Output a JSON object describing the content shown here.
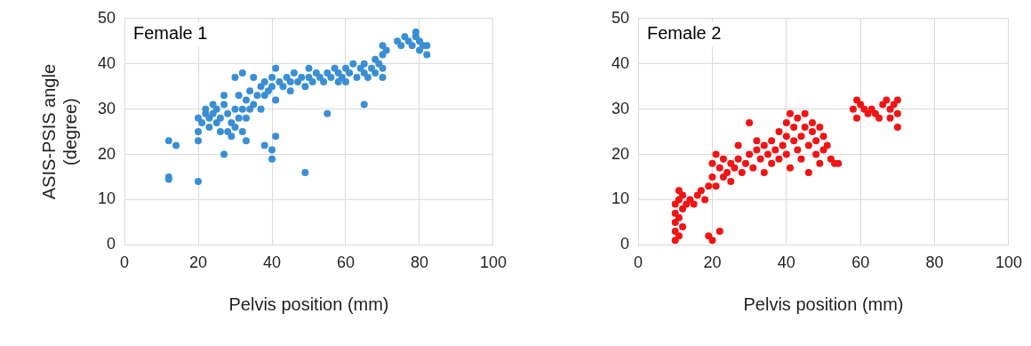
{
  "chart_data": [
    {
      "type": "scatter",
      "title": "Female 1",
      "ylabel": [
        "ASIS-PSIS angle",
        "(degree)"
      ],
      "xlabel": "Pelvis position (mm)",
      "color": "#3a8fd4",
      "marker": "circle",
      "grid": true,
      "xlim": [
        0,
        100
      ],
      "xticks": [
        0,
        20,
        40,
        60,
        80,
        100
      ],
      "ylim": [
        0,
        50
      ],
      "yticks": [
        0,
        10,
        20,
        30,
        40,
        50
      ],
      "x": [
        12,
        12,
        12,
        14,
        20,
        20,
        27,
        33,
        38,
        40,
        40,
        41,
        49,
        55,
        65,
        20,
        20,
        21,
        22,
        22,
        23,
        24,
        25,
        25,
        26,
        27,
        28,
        28,
        29,
        29,
        30,
        30,
        30,
        31,
        31,
        32,
        32,
        32,
        33,
        33,
        34,
        34,
        35,
        35,
        36,
        37,
        37,
        38,
        38,
        39,
        40,
        40,
        41,
        41,
        42,
        43,
        44,
        45,
        45,
        46,
        47,
        48,
        49,
        50,
        50,
        51,
        52,
        53,
        54,
        55,
        56,
        57,
        58,
        58,
        59,
        60,
        60,
        61,
        62,
        63,
        64,
        65,
        65,
        66,
        67,
        68,
        68,
        69,
        70,
        70,
        70,
        70,
        71,
        74,
        75,
        76,
        77,
        78,
        79,
        79,
        80,
        80,
        81,
        82,
        82,
        24,
        26,
        23,
        27
      ],
      "values": [
        15,
        14.5,
        23,
        22,
        14,
        23,
        20,
        23,
        22,
        21,
        19,
        24,
        16,
        29,
        31,
        25,
        28,
        27,
        29,
        30,
        28,
        29,
        30,
        27,
        28,
        31,
        29,
        25,
        27,
        24,
        30,
        26,
        37,
        33,
        28,
        30,
        25,
        38,
        32,
        28,
        30,
        34,
        37,
        31,
        33,
        35,
        30,
        33,
        36,
        34,
        37,
        35,
        39,
        32,
        36,
        35,
        37,
        36,
        34,
        38,
        36,
        37,
        35,
        37,
        39,
        36,
        38,
        37,
        36,
        38,
        37,
        39,
        38,
        36,
        37,
        39,
        36,
        38,
        40,
        37,
        39,
        38,
        40,
        37,
        39,
        38,
        41,
        40,
        44,
        42,
        39,
        37,
        43,
        45,
        44,
        46,
        45,
        44,
        46,
        47,
        45,
        43,
        44,
        42,
        44,
        31,
        25,
        26,
        33
      ]
    },
    {
      "type": "scatter",
      "title": "Female 2",
      "xlabel": "Pelvis position (mm)",
      "color": "#f01414",
      "marker": "circle",
      "grid": true,
      "xlim": [
        0,
        100
      ],
      "xticks": [
        0,
        20,
        40,
        60,
        80,
        100
      ],
      "ylim": [
        0,
        50
      ],
      "yticks": [
        0,
        10,
        20,
        30,
        40,
        50
      ],
      "x": [
        10,
        10,
        10,
        10,
        10,
        11,
        11,
        11,
        11,
        12,
        12,
        12,
        13,
        14,
        15,
        16,
        17,
        18,
        19,
        19,
        20,
        20,
        20,
        21,
        21,
        22,
        22,
        23,
        23,
        24,
        25,
        25,
        26,
        27,
        27,
        28,
        29,
        30,
        30,
        31,
        32,
        32,
        33,
        34,
        34,
        35,
        36,
        36,
        37,
        38,
        38,
        39,
        40,
        40,
        40,
        41,
        41,
        42,
        42,
        43,
        43,
        44,
        44,
        45,
        45,
        46,
        46,
        47,
        47,
        48,
        48,
        49,
        49,
        50,
        50,
        51,
        52,
        53,
        54,
        58,
        59,
        59,
        60,
        61,
        62,
        63,
        64,
        65,
        66,
        67,
        68,
        68,
        69,
        70,
        70,
        70
      ],
      "values": [
        1,
        3,
        5,
        7,
        9,
        2,
        6,
        10,
        12,
        4,
        8,
        11,
        9,
        10,
        9,
        11,
        12,
        10,
        13,
        2,
        1,
        15,
        18,
        20,
        13,
        17,
        3,
        19,
        15,
        16,
        18,
        14,
        17,
        19,
        22,
        16,
        18,
        20,
        27,
        17,
        21,
        23,
        19,
        22,
        16,
        20,
        23,
        18,
        21,
        25,
        19,
        22,
        27,
        24,
        20,
        29,
        17,
        23,
        26,
        21,
        28,
        24,
        19,
        26,
        29,
        22,
        16,
        25,
        27,
        23,
        20,
        26,
        18,
        24,
        21,
        22,
        19,
        18,
        18,
        30,
        32,
        28,
        31,
        30,
        29,
        30,
        29,
        28,
        31,
        32,
        30,
        28,
        31,
        29,
        26,
        32
      ]
    }
  ]
}
